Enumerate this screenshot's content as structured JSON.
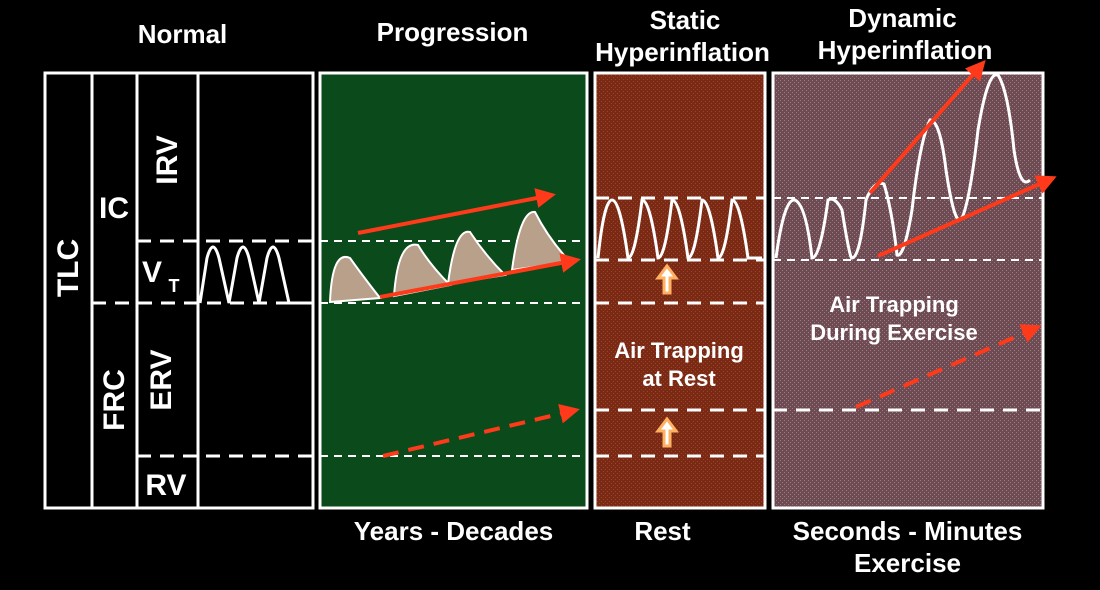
{
  "headers": {
    "normal": "Normal",
    "progression": "Progression",
    "static_1": "Static",
    "static_2": "Hyperinflation",
    "dynamic_1": "Dynamic",
    "dynamic_2": "Hyperinflation"
  },
  "volume_labels": {
    "tlc": "TLC",
    "ic": "IC",
    "frc": "FRC",
    "irv": "IRV",
    "vt": "V",
    "vt_sub": "T",
    "erv": "ERV",
    "rv": "RV"
  },
  "annotations": {
    "static_1": "Air Trapping",
    "static_2": "at Rest",
    "dynamic_1": "Air Trapping",
    "dynamic_2": "During Exercise"
  },
  "footers": {
    "progression": "Years - Decades",
    "static": "Rest",
    "dynamic_1": "Seconds - Minutes",
    "dynamic_2": "Exercise"
  },
  "colors": {
    "background": "#000000",
    "progression_panel": "#0b4a1b",
    "static_panel": "#7a2a14",
    "dynamic_panel": "#6e4a52",
    "arrow": "#ff3a1a",
    "up_arrow": "#ffb060",
    "tidal_fill": "#b8a08a",
    "line": "#ffffff"
  }
}
